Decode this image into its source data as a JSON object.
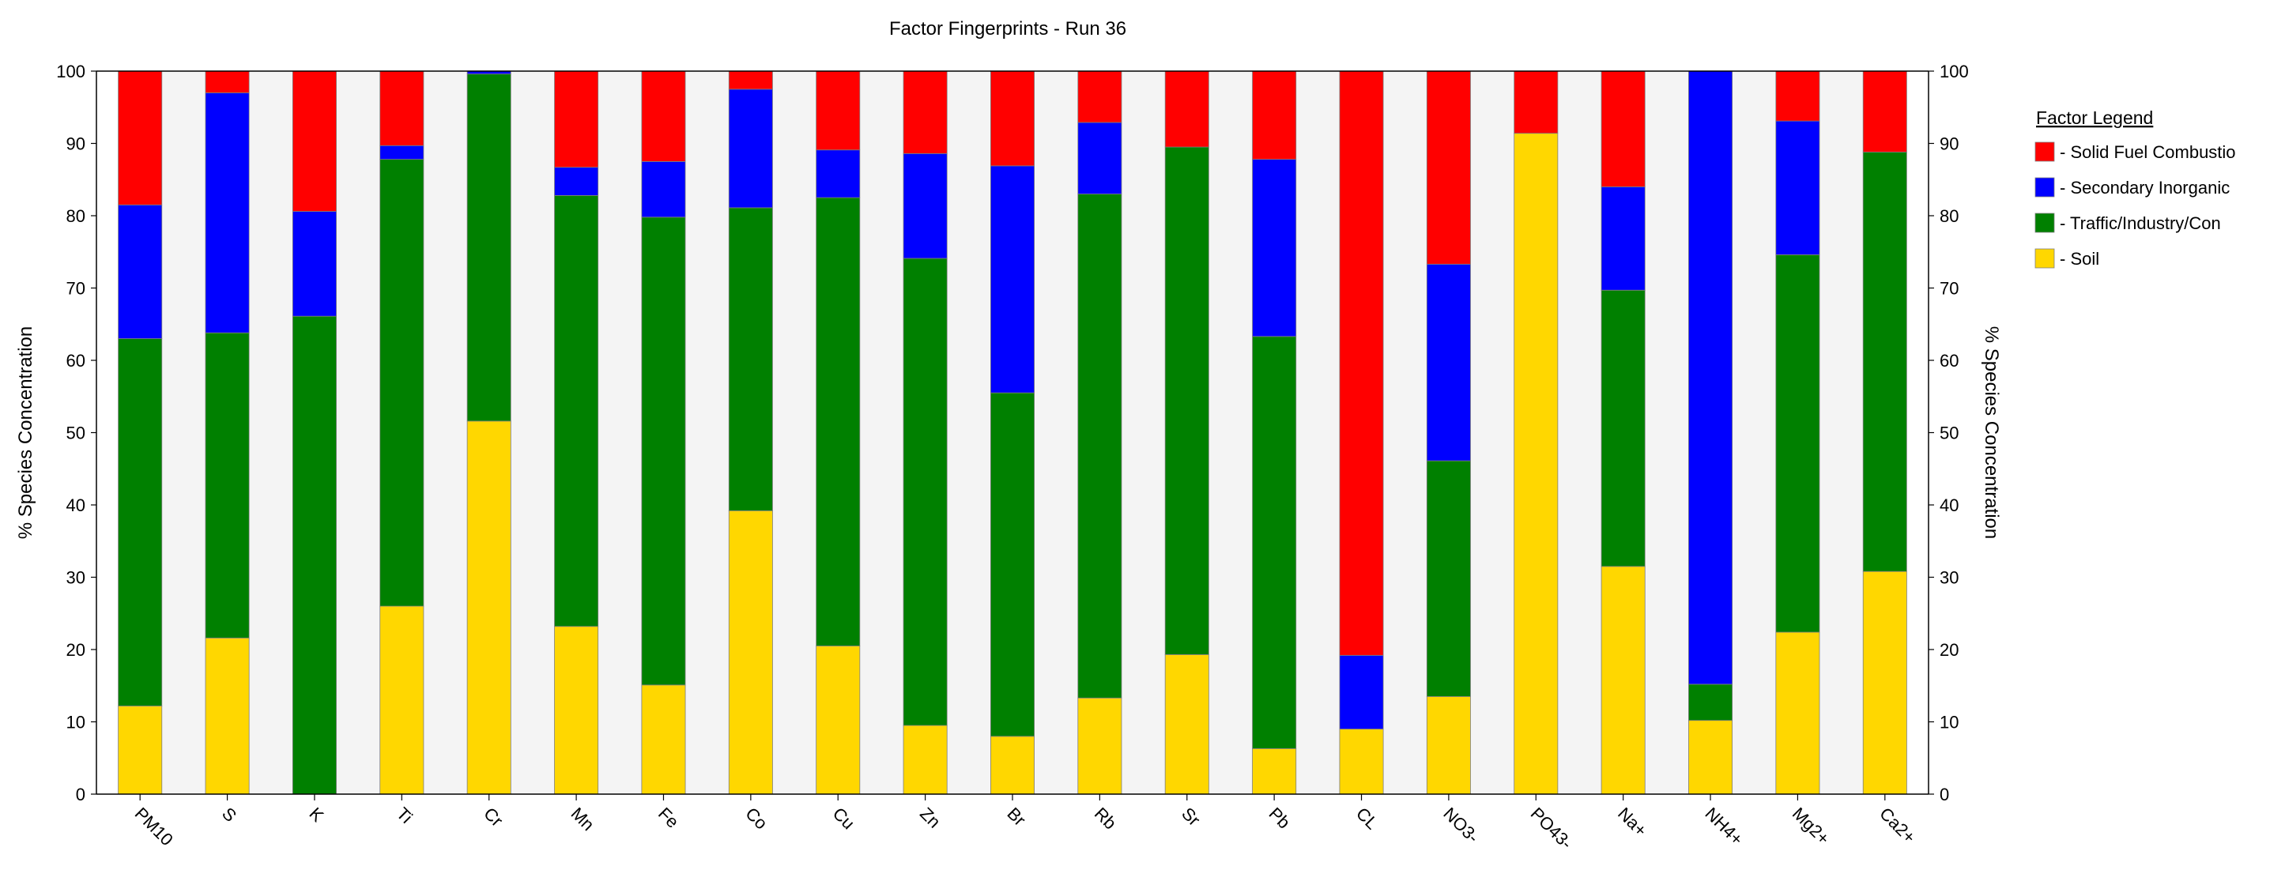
{
  "chart_data": {
    "type": "bar",
    "stacked": true,
    "title": "Factor Fingerprints - Run 36",
    "ylabel_left": "% Species Concentration",
    "ylabel_right": "% Species Concentration",
    "ylim": [
      0,
      100
    ],
    "yticks": [
      "0",
      "10",
      "20",
      "30",
      "40",
      "50",
      "60",
      "70",
      "80",
      "90",
      "100"
    ],
    "categories": [
      "PM10",
      "S",
      "K",
      "Ti",
      "Cr",
      "Mn",
      "Fe",
      "Co",
      "Cu",
      "Zn",
      "Br",
      "Rb",
      "Sr",
      "Pb",
      "CL",
      "NO3-",
      "PO43-",
      "Na+",
      "NH4+",
      "Mg2+",
      "Ca2+"
    ],
    "legend_title": "Factor Legend",
    "legend_position": "right",
    "series": [
      {
        "name": " - Soil",
        "color": "#FFD700",
        "values": [
          12.2,
          21.6,
          0,
          26.0,
          51.6,
          23.2,
          15.1,
          39.2,
          20.5,
          9.5,
          8.0,
          13.3,
          19.3,
          6.3,
          9.0,
          13.5,
          91.4,
          31.5,
          10.2,
          22.4,
          30.8
        ]
      },
      {
        "name": " - Traffic/Industry/Con",
        "color": "#008000",
        "values": [
          50.8,
          42.2,
          66.1,
          61.8,
          48.0,
          59.6,
          64.7,
          41.9,
          62.0,
          64.6,
          47.5,
          69.7,
          70.2,
          57.0,
          0,
          32.6,
          0,
          38.2,
          5.0,
          52.2,
          58.0
        ]
      },
      {
        "name": " - Secondary Inorganic",
        "color": "#0000FF",
        "values": [
          18.5,
          33.2,
          14.5,
          1.9,
          0.4,
          3.9,
          7.7,
          16.4,
          6.6,
          14.5,
          31.4,
          9.9,
          0,
          24.5,
          10.2,
          27.2,
          0,
          14.3,
          84.8,
          18.5,
          0
        ]
      },
      {
        "name": " - Solid Fuel Combustio",
        "color": "#FF0000",
        "values": [
          18.5,
          3.0,
          19.4,
          10.3,
          0,
          13.3,
          12.5,
          2.5,
          10.9,
          11.4,
          13.1,
          7.1,
          10.5,
          12.2,
          80.8,
          26.7,
          8.6,
          16.0,
          0,
          6.9,
          11.2
        ]
      }
    ],
    "legend_order": [
      " - Solid Fuel Combustio",
      " - Secondary Inorganic",
      " - Traffic/Industry/Con",
      " - Soil"
    ],
    "grid": false
  }
}
